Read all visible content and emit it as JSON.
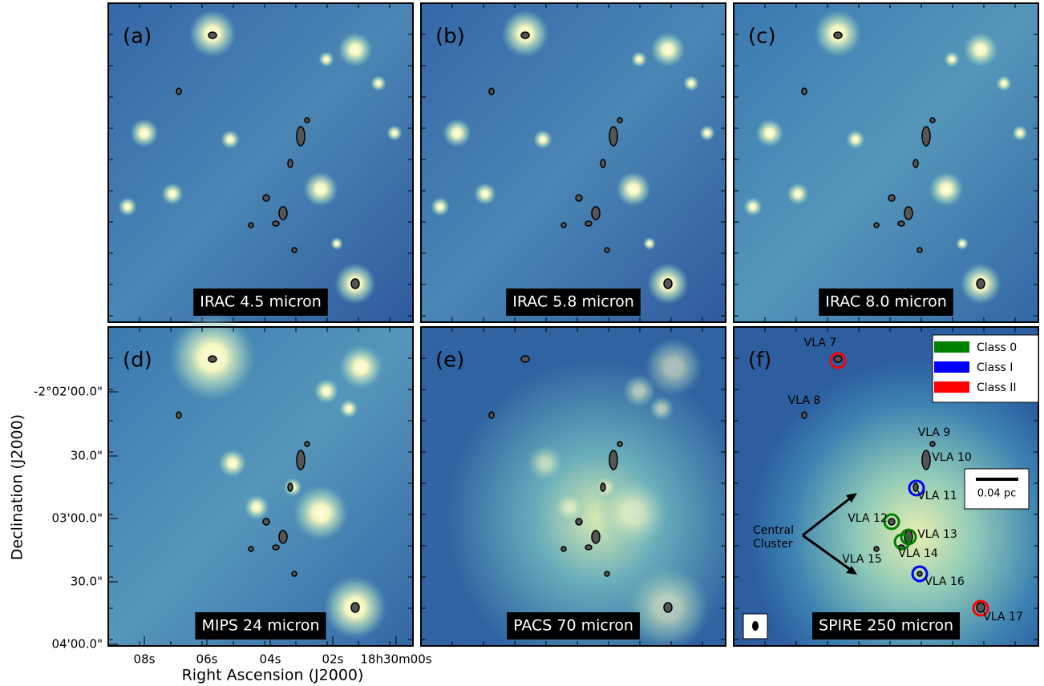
{
  "panels": [
    {
      "letter": "(a)",
      "band": "IRAC 4.5 micron"
    },
    {
      "letter": "(b)",
      "band": "IRAC 5.8 micron"
    },
    {
      "letter": "(c)",
      "band": "IRAC 8.0 micron"
    },
    {
      "letter": "(d)",
      "band": "MIPS 24 micron"
    },
    {
      "letter": "(e)",
      "band": "PACS 70 micron"
    },
    {
      "letter": "(f)",
      "band": "SPIRE 250 micron"
    }
  ],
  "y_axis": {
    "label": "Declination (J2000)",
    "ticks": [
      "-2°02'00.0\"",
      "30.0\"",
      "03'00.0\"",
      "30.0\"",
      "04'00.0\""
    ]
  },
  "x_axis": {
    "label": "Right Ascension (J2000)",
    "ticks": [
      "08s",
      "06s",
      "04s",
      "02s",
      "18h30m00s"
    ]
  },
  "legend": [
    {
      "name": "Class 0",
      "color": "#008000"
    },
    {
      "name": "Class I",
      "color": "#0000ff"
    },
    {
      "name": "Class II",
      "color": "#ff0000"
    }
  ],
  "sources": [
    {
      "name": "VLA 7",
      "class": "Class II"
    },
    {
      "name": "VLA 8"
    },
    {
      "name": "VLA 9"
    },
    {
      "name": "VLA 10"
    },
    {
      "name": "VLA 11",
      "class": "Class I"
    },
    {
      "name": "VLA 12",
      "class": "Class 0"
    },
    {
      "name": "VLA 13",
      "class": "Class 0"
    },
    {
      "name": "VLA 14",
      "class": "Class 0"
    },
    {
      "name": "VLA 15"
    },
    {
      "name": "VLA 16",
      "class": "Class I"
    },
    {
      "name": "VLA 17",
      "class": "Class II"
    }
  ],
  "scale_bar": "0.04 pc",
  "annotation": [
    "Central",
    "Cluster"
  ]
}
